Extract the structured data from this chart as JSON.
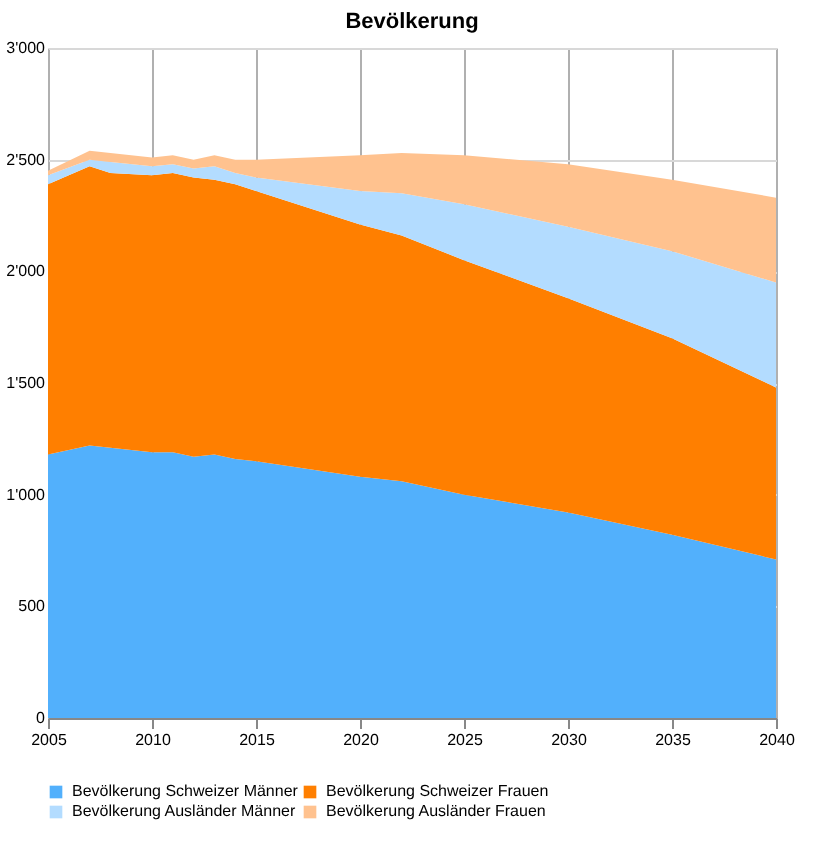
{
  "chart_data": {
    "type": "area",
    "title": "Bevölkerung",
    "stacked": true,
    "x": [
      2005,
      2007,
      2008,
      2010,
      2011,
      2012,
      2013,
      2014,
      2015,
      2020,
      2022,
      2025,
      2030,
      2035,
      2040
    ],
    "series": [
      {
        "name": "Bevölkerung Schweizer Männer",
        "color": "#52b0fc",
        "values": [
          1180,
          1220,
          1210,
          1190,
          1190,
          1170,
          1180,
          1160,
          1150,
          1080,
          1060,
          1000,
          920,
          820,
          710
        ]
      },
      {
        "name": "Bevölkerung Schweizer Frauen",
        "color": "#ff7f00",
        "values": [
          1210,
          1250,
          1230,
          1240,
          1250,
          1250,
          1230,
          1230,
          1210,
          1130,
          1100,
          1050,
          960,
          880,
          770
        ]
      },
      {
        "name": "Bevölkerung Ausländer Männer",
        "color": "#b3dcff",
        "values": [
          40,
          30,
          50,
          40,
          40,
          40,
          60,
          50,
          60,
          150,
          190,
          250,
          320,
          390,
          470
        ]
      },
      {
        "name": "Bevölkerung Ausländer Frauen",
        "color": "#ffc28f",
        "values": [
          20,
          40,
          40,
          40,
          40,
          40,
          50,
          60,
          80,
          160,
          180,
          220,
          280,
          320,
          380
        ]
      }
    ],
    "xlim": [
      2005,
      2040
    ],
    "xticks": [
      2005,
      2010,
      2015,
      2020,
      2025,
      2030,
      2035,
      2040
    ],
    "ylim": [
      0,
      3000
    ],
    "yticks": [
      0,
      500,
      {
        "value": 1000,
        "label": "1'000"
      },
      {
        "value": 1500,
        "label": "1'500"
      },
      {
        "value": 2000,
        "label": "2'000"
      },
      {
        "value": 2500,
        "label": "2'500"
      },
      {
        "value": 3000,
        "label": "3'000"
      }
    ],
    "grid": true,
    "legend": "bottom"
  }
}
